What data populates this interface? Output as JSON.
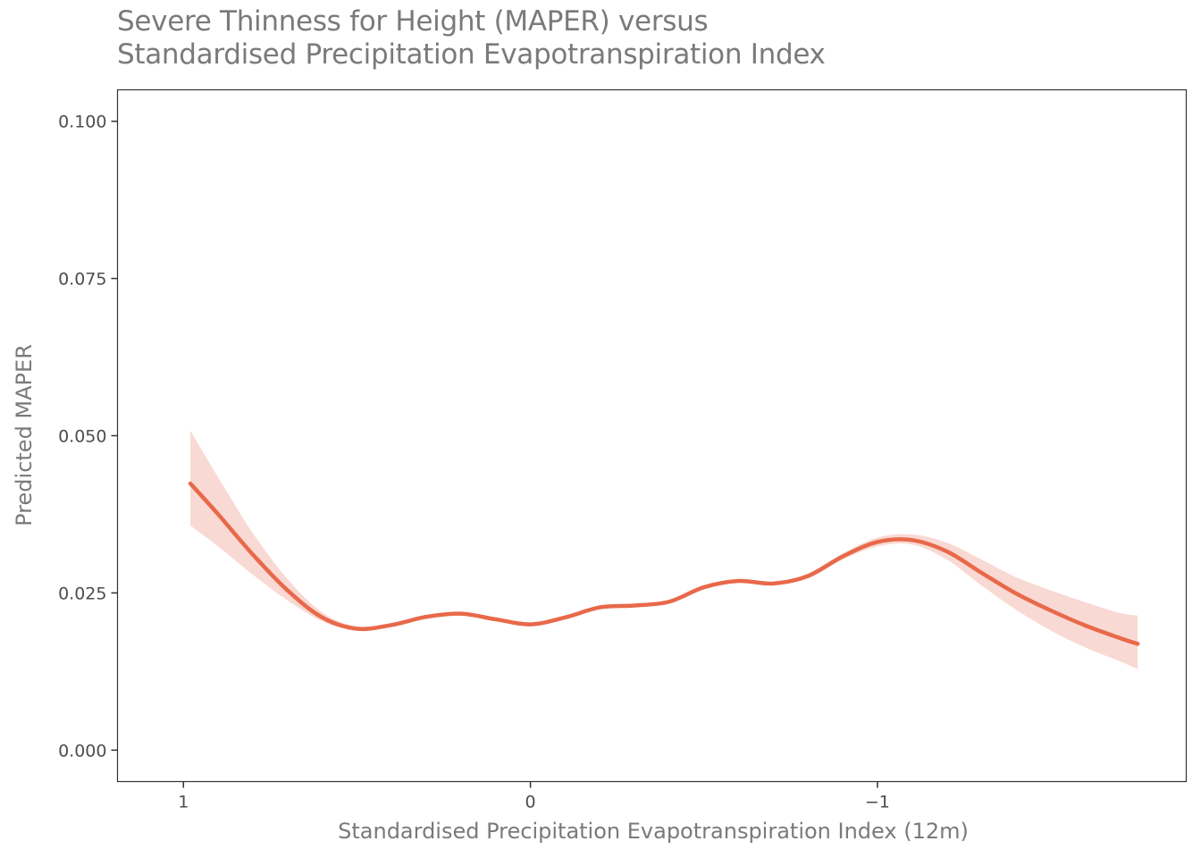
{
  "chart_data": {
    "type": "line",
    "title_lines": [
      "Severe Thinness for Height (MAPER) versus",
      "Standardised Precipitation Evapotranspiration Index"
    ],
    "xlabel": "Standardised Precipitation Evapotranspiration Index (12m)",
    "ylabel": "Predicted MAPER",
    "x_reversed": true,
    "xlim": [
      1.19,
      -1.89
    ],
    "ylim": [
      -0.005,
      0.105
    ],
    "x_ticks": [
      1,
      0,
      -1
    ],
    "x_tick_labels": [
      "1",
      "0",
      "−1"
    ],
    "y_ticks": [
      0.0,
      0.025,
      0.05,
      0.075,
      0.1
    ],
    "y_tick_labels": [
      "0.000",
      "0.025",
      "0.050",
      "0.075",
      "0.100"
    ],
    "grid": false,
    "legend": "none",
    "colors": {
      "line": "#e8694a",
      "band": "#f9d9d3",
      "panel_border": "#333333"
    },
    "series": [
      {
        "x": [
          0.98,
          0.9,
          0.8,
          0.7,
          0.6,
          0.5,
          0.4,
          0.3,
          0.2,
          0.1,
          0.0,
          -0.1,
          -0.2,
          -0.3,
          -0.4,
          -0.5,
          -0.6,
          -0.7,
          -0.8,
          -0.9,
          -1.0,
          -1.1,
          -1.2,
          -1.3,
          -1.4,
          -1.5,
          -1.6,
          -1.7,
          -1.75
        ],
        "y": [
          0.0424,
          0.0375,
          0.0311,
          0.0254,
          0.0211,
          0.0193,
          0.0199,
          0.0212,
          0.0217,
          0.0208,
          0.02,
          0.0211,
          0.0227,
          0.023,
          0.0236,
          0.0259,
          0.0269,
          0.0265,
          0.0277,
          0.0308,
          0.0331,
          0.0334,
          0.0316,
          0.0282,
          0.0249,
          0.0222,
          0.0198,
          0.0178,
          0.0169
        ],
        "lower": [
          0.0357,
          0.0324,
          0.0279,
          0.0238,
          0.0205,
          0.019,
          0.0196,
          0.021,
          0.0215,
          0.0206,
          0.0198,
          0.0209,
          0.0225,
          0.0228,
          0.0234,
          0.0256,
          0.0266,
          0.0263,
          0.0273,
          0.0303,
          0.0324,
          0.0327,
          0.0303,
          0.0262,
          0.0223,
          0.019,
          0.0163,
          0.0141,
          0.0129
        ],
        "upper": [
          0.0508,
          0.0434,
          0.0345,
          0.0272,
          0.0219,
          0.0197,
          0.0202,
          0.0214,
          0.0219,
          0.021,
          0.0202,
          0.0213,
          0.0229,
          0.0232,
          0.0238,
          0.0262,
          0.0272,
          0.0267,
          0.0281,
          0.0313,
          0.0338,
          0.0343,
          0.033,
          0.0303,
          0.0275,
          0.0254,
          0.0235,
          0.0218,
          0.0214
        ]
      }
    ]
  }
}
